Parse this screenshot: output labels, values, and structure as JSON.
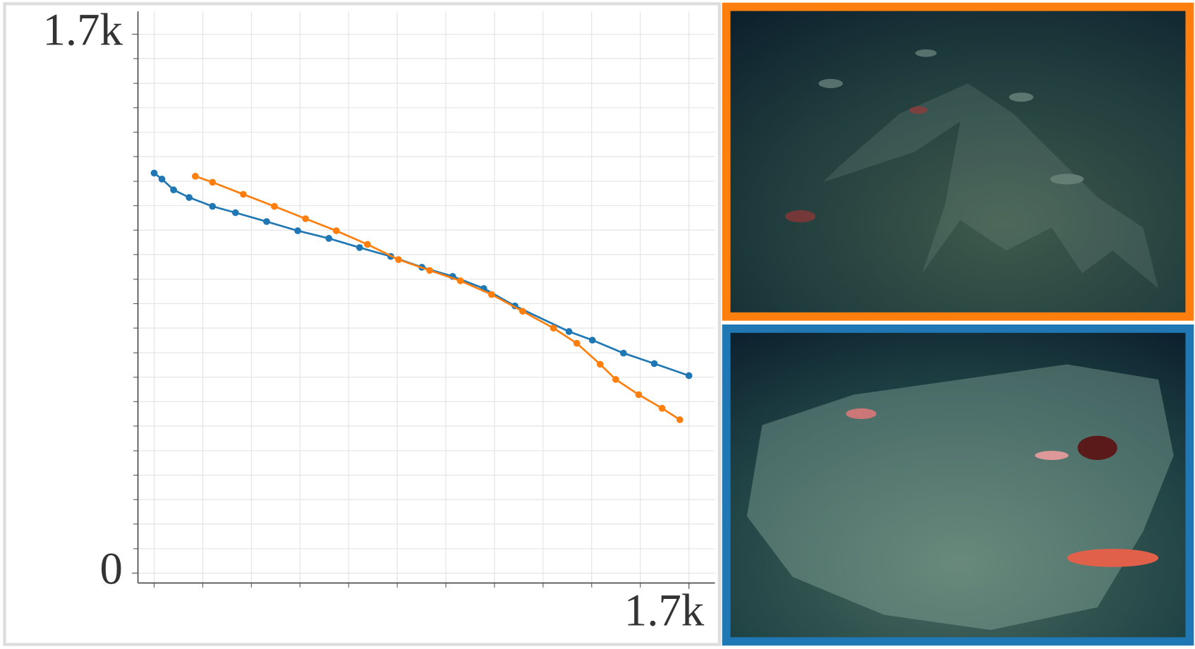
{
  "chart_data": {
    "type": "line",
    "xlim": [
      0,
      1780
    ],
    "ylim": [
      -31,
      1772
    ],
    "xticks": [
      {
        "value": 1700,
        "label": "1.7k"
      }
    ],
    "yticks": [
      0,
      {
        "value": 1700,
        "label": "1.7k"
      }
    ],
    "xgrid": [
      50,
      200,
      350,
      500,
      650,
      800,
      950,
      1100,
      1250,
      1400,
      1550,
      1700
    ],
    "ygrid": [
      0,
      77,
      155,
      232,
      309,
      386,
      464,
      541,
      618,
      695,
      773,
      850,
      927,
      1005,
      1082,
      1159,
      1236,
      1314,
      1391,
      1468,
      1545,
      1623,
      1700
    ],
    "grid": true,
    "series": [
      {
        "color": "#1f77b4",
        "x": [
          50,
          74,
          110,
          158,
          230,
          301,
          397,
          493,
          589,
          684,
          780,
          876,
          971,
          1067,
          1163,
          1330,
          1402,
          1498,
          1593,
          1700
        ],
        "values": [
          1262,
          1243,
          1209,
          1185,
          1157,
          1137,
          1109,
          1080,
          1056,
          1027,
          999,
          965,
          936,
          898,
          843,
          762,
          735,
          694,
          661,
          623
        ]
      },
      {
        "color": "#ff7f0e",
        "x": [
          177,
          230,
          325,
          421,
          517,
          612,
          708,
          804,
          900,
          995,
          1091,
          1187,
          1282,
          1354,
          1426,
          1474,
          1545,
          1617,
          1672
        ],
        "values": [
          1252,
          1233,
          1195,
          1157,
          1118,
          1080,
          1037,
          989,
          955,
          922,
          879,
          826,
          773,
          725,
          659,
          611,
          563,
          520,
          484
        ]
      }
    ]
  }
}
